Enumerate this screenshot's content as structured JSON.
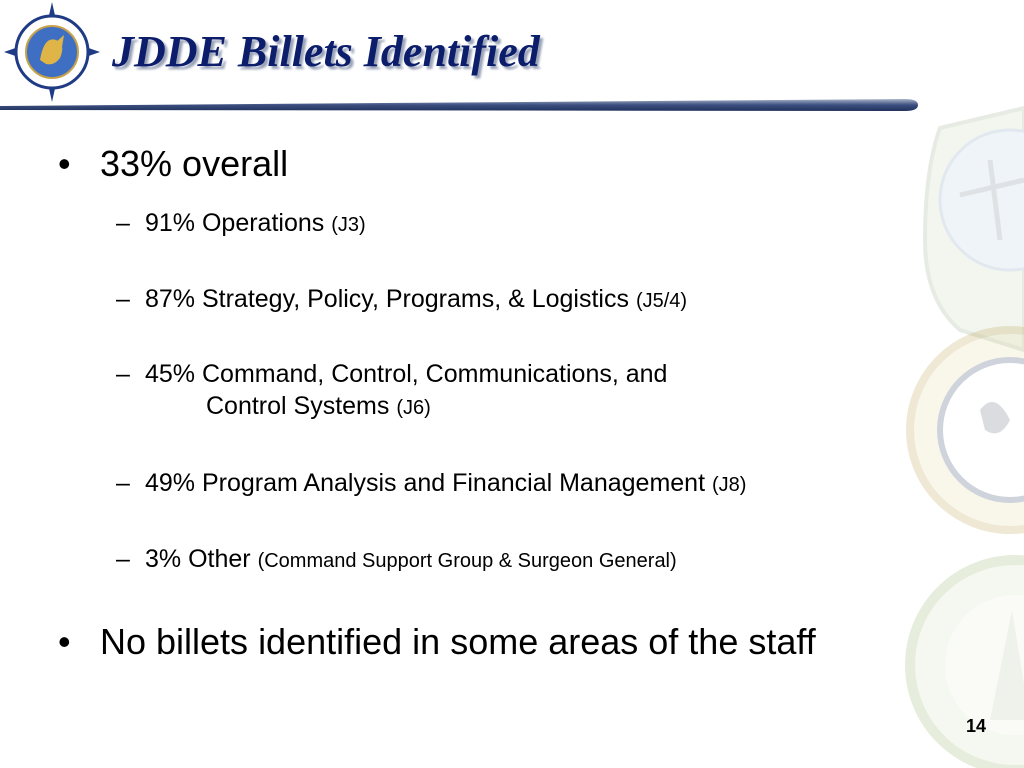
{
  "slide": {
    "title": "JDDE Billets Identified",
    "logo_icon": "transportation-command-seal-icon",
    "background_icons": [
      "air-mobility-command-seal-icon",
      "military-sealift-command-seal-icon",
      "surface-deployment-command-seal-icon"
    ],
    "title_color": "#0b1d6b",
    "page_number": "14"
  },
  "bullets": [
    {
      "marker": "•",
      "text": "33% overall"
    },
    {
      "marker": "•",
      "text": "No billets identified in some areas of the staff"
    }
  ],
  "sub_bullets": [
    {
      "marker": "–",
      "text": "91% Operations",
      "suffix": "(J3)"
    },
    {
      "marker": "–",
      "text": "87% Strategy, Policy, Programs, & Logistics",
      "suffix": "(J5/4)"
    },
    {
      "marker": "–",
      "text": "45% Command, Control, Communications, and",
      "continuation": "Control Systems",
      "suffix": "(J6)"
    },
    {
      "marker": "–",
      "text": "49% Program Analysis and Financial Management",
      "suffix": "(J8)"
    },
    {
      "marker": "–",
      "text": "3% Other",
      "suffix": "(Command Support Group & Surgeon General)"
    }
  ]
}
